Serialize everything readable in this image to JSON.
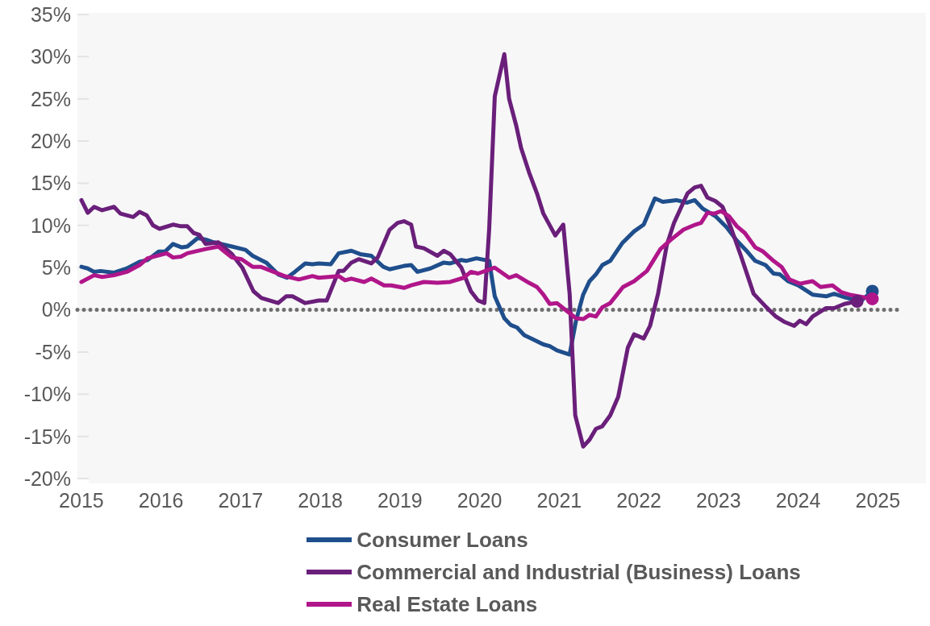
{
  "chart_data": {
    "type": "line",
    "xlim": [
      2014.95,
      2025.3
    ],
    "xticks": [
      2015,
      2016,
      2017,
      2018,
      2019,
      2020,
      2021,
      2022,
      2023,
      2024,
      2025
    ],
    "ylim": [
      -20,
      35
    ],
    "yticks": [
      {
        "value": -20,
        "label": "-20%"
      },
      {
        "value": -15,
        "label": "-15%"
      },
      {
        "value": -10,
        "label": "-10%"
      },
      {
        "value": -5,
        "label": "-5%"
      },
      {
        "value": 0,
        "label": "0%"
      },
      {
        "value": 5,
        "label": "5%"
      },
      {
        "value": 10,
        "label": "10%"
      },
      {
        "value": 15,
        "label": "15%"
      },
      {
        "value": 20,
        "label": "20%"
      },
      {
        "value": 25,
        "label": "25%"
      },
      {
        "value": 30,
        "label": "30%"
      },
      {
        "value": 35,
        "label": "35%"
      }
    ],
    "grid": "y",
    "legend": "bottom",
    "marker": "none",
    "line_style": "solid",
    "ref_lines": [
      {
        "axis": "y",
        "value": 0,
        "color": "#6e6e6e",
        "line_style": "dotted"
      }
    ],
    "series": [
      {
        "name": "Consumer Loans",
        "color": "#1f4e8c",
        "x": [
          2015.0,
          2015.08,
          2015.16,
          2015.24,
          2015.41,
          2015.57,
          2015.73,
          2015.83,
          2015.97,
          2016.05,
          2016.15,
          2016.26,
          2016.33,
          2016.46,
          2016.57,
          2016.66,
          2016.89,
          2017.06,
          2017.15,
          2017.32,
          2017.47,
          2017.58,
          2017.68,
          2017.81,
          2017.9,
          2017.98,
          2018.13,
          2018.23,
          2018.39,
          2018.5,
          2018.64,
          2018.79,
          2018.87,
          2019.05,
          2019.14,
          2019.22,
          2019.38,
          2019.55,
          2019.63,
          2019.77,
          2019.83,
          2019.96,
          2020.12,
          2020.19,
          2020.31,
          2020.39,
          2020.47,
          2020.56,
          2020.65,
          2020.8,
          2020.88,
          2020.97,
          2021.13,
          2021.21,
          2021.3,
          2021.38,
          2021.46,
          2021.54,
          2021.64,
          2021.79,
          2021.94,
          2022.06,
          2022.2,
          2022.3,
          2022.47,
          2022.6,
          2022.7,
          2022.8,
          2022.96,
          2023.1,
          2023.23,
          2023.36,
          2023.46,
          2023.59,
          2023.69,
          2023.77,
          2023.87,
          2024.0,
          2024.18,
          2024.35,
          2024.45,
          2024.58,
          2024.78,
          2024.93
        ],
        "values": [
          5.1,
          4.9,
          4.5,
          4.6,
          4.4,
          4.9,
          5.7,
          5.9,
          6.9,
          6.9,
          7.8,
          7.4,
          7.5,
          8.5,
          8.3,
          8.0,
          7.5,
          7.1,
          6.4,
          5.6,
          4.2,
          3.8,
          4.5,
          5.5,
          5.4,
          5.5,
          5.4,
          6.7,
          7.0,
          6.6,
          6.4,
          5.1,
          4.8,
          5.2,
          5.3,
          4.5,
          4.9,
          5.6,
          5.5,
          5.9,
          5.8,
          6.1,
          5.8,
          1.6,
          -1.0,
          -1.8,
          -2.1,
          -3.0,
          -3.4,
          -4.1,
          -4.3,
          -4.8,
          -5.3,
          -1.3,
          1.8,
          3.4,
          4.2,
          5.3,
          5.8,
          7.9,
          9.3,
          10.1,
          13.2,
          12.8,
          13.0,
          12.7,
          13.0,
          12.0,
          11.1,
          9.8,
          8.2,
          6.9,
          5.8,
          5.3,
          4.3,
          4.2,
          3.4,
          2.9,
          1.8,
          1.6,
          1.9,
          1.5,
          1.0,
          2.2
        ]
      },
      {
        "name": "Commercial and Industrial (Business) Loans",
        "color": "#6a1f7a",
        "x": [
          2015.0,
          2015.08,
          2015.16,
          2015.26,
          2015.41,
          2015.49,
          2015.65,
          2015.73,
          2015.82,
          2015.9,
          2015.98,
          2016.15,
          2016.25,
          2016.33,
          2016.41,
          2016.48,
          2016.56,
          2016.72,
          2016.89,
          2017.02,
          2017.16,
          2017.26,
          2017.47,
          2017.57,
          2017.65,
          2017.81,
          2017.98,
          2018.08,
          2018.23,
          2018.29,
          2018.39,
          2018.48,
          2018.64,
          2018.72,
          2018.87,
          2018.97,
          2019.05,
          2019.14,
          2019.2,
          2019.3,
          2019.47,
          2019.55,
          2019.63,
          2019.77,
          2019.89,
          2019.98,
          2020.06,
          2020.12,
          2020.19,
          2020.31,
          2020.37,
          2020.46,
          2020.52,
          2020.62,
          2020.72,
          2020.8,
          2020.95,
          2021.05,
          2021.13,
          2021.2,
          2021.3,
          2021.38,
          2021.46,
          2021.54,
          2021.64,
          2021.74,
          2021.86,
          2021.94,
          2022.06,
          2022.14,
          2022.24,
          2022.35,
          2022.44,
          2022.61,
          2022.7,
          2022.78,
          2022.86,
          2022.96,
          2023.05,
          2023.16,
          2023.28,
          2023.38,
          2023.44,
          2023.6,
          2023.72,
          2023.82,
          2023.95,
          2024.02,
          2024.1,
          2024.18,
          2024.35,
          2024.45,
          2024.58,
          2024.74
        ],
        "values": [
          13.0,
          11.5,
          12.2,
          11.8,
          12.2,
          11.4,
          11.0,
          11.6,
          11.2,
          10.0,
          9.6,
          10.1,
          9.9,
          9.9,
          9.1,
          8.9,
          7.8,
          8.0,
          6.6,
          5.0,
          2.2,
          1.4,
          0.8,
          1.6,
          1.6,
          0.8,
          1.1,
          1.1,
          4.6,
          4.6,
          5.6,
          6.0,
          5.5,
          6.2,
          9.5,
          10.3,
          10.5,
          10.1,
          7.5,
          7.3,
          6.4,
          7.0,
          6.6,
          5.0,
          2.2,
          1.1,
          0.8,
          9.6,
          25.3,
          30.3,
          25.0,
          21.8,
          19.2,
          16.3,
          13.8,
          11.4,
          8.8,
          10.1,
          1.9,
          -12.5,
          -16.2,
          -15.4,
          -14.1,
          -13.8,
          -12.5,
          -10.3,
          -4.5,
          -2.9,
          -3.4,
          -1.9,
          1.9,
          7.7,
          10.3,
          13.8,
          14.5,
          14.7,
          13.3,
          12.9,
          12.2,
          9.6,
          6.4,
          3.6,
          1.9,
          0.3,
          -0.8,
          -1.4,
          -1.9,
          -1.3,
          -1.7,
          -0.8,
          0.2,
          0.2,
          0.7,
          1.0
        ]
      },
      {
        "name": "Real Estate Loans",
        "color": "#b0168a",
        "x": [
          2015.0,
          2015.16,
          2015.26,
          2015.41,
          2015.57,
          2015.73,
          2015.83,
          2016.07,
          2016.15,
          2016.25,
          2016.33,
          2016.56,
          2016.72,
          2016.81,
          2016.89,
          2017.01,
          2017.15,
          2017.25,
          2017.55,
          2017.73,
          2017.9,
          2017.98,
          2018.23,
          2018.31,
          2018.39,
          2018.55,
          2018.64,
          2018.8,
          2018.89,
          2019.05,
          2019.14,
          2019.3,
          2019.47,
          2019.63,
          2019.8,
          2019.89,
          2019.98,
          2020.19,
          2020.37,
          2020.46,
          2020.62,
          2020.72,
          2020.8,
          2020.88,
          2020.97,
          2021.05,
          2021.21,
          2021.3,
          2021.38,
          2021.46,
          2021.54,
          2021.64,
          2021.8,
          2021.94,
          2022.1,
          2022.27,
          2022.4,
          2022.56,
          2022.71,
          2022.78,
          2022.86,
          2022.95,
          2023.03,
          2023.13,
          2023.23,
          2023.33,
          2023.46,
          2023.56,
          2023.69,
          2023.79,
          2023.89,
          2024.02,
          2024.18,
          2024.28,
          2024.43,
          2024.54,
          2024.64,
          2024.93
        ],
        "values": [
          3.3,
          4.1,
          3.9,
          4.1,
          4.5,
          5.3,
          6.1,
          6.7,
          6.2,
          6.3,
          6.7,
          7.2,
          7.5,
          6.8,
          6.2,
          6.0,
          5.1,
          5.1,
          4.0,
          3.6,
          4.0,
          3.8,
          4.0,
          3.5,
          3.7,
          3.3,
          3.7,
          2.9,
          2.9,
          2.6,
          2.9,
          3.3,
          3.2,
          3.3,
          3.8,
          4.5,
          4.3,
          5.0,
          3.8,
          4.1,
          3.2,
          2.7,
          1.8,
          0.7,
          0.8,
          0.2,
          -1.0,
          -1.1,
          -0.6,
          -0.8,
          0.3,
          0.8,
          2.7,
          3.4,
          4.6,
          7.2,
          8.3,
          9.5,
          10.1,
          10.3,
          11.5,
          11.4,
          11.7,
          11.1,
          9.9,
          9.1,
          7.4,
          6.9,
          5.8,
          5.1,
          3.6,
          3.1,
          3.4,
          2.7,
          2.9,
          2.1,
          1.8,
          1.3
        ]
      }
    ]
  }
}
